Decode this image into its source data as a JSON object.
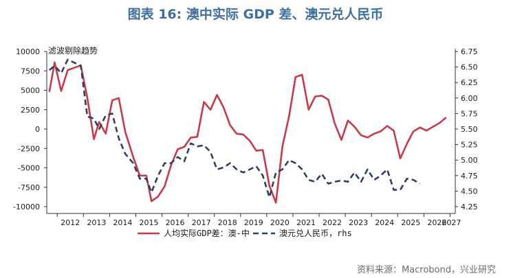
{
  "header": {
    "title": "图表 16: 澳中实际 GDP 差、澳元兑人民币"
  },
  "footer": {
    "source": "资料来源：Macrobond，兴业研究"
  },
  "colors": {
    "series1": "#c8394a",
    "series2": "#2f3f5e",
    "axis": "#333333",
    "title": "#3f6f9e"
  },
  "chart_data": {
    "type": "line",
    "annotation": "滤波剔除趋势",
    "xlabel": "",
    "ylabel": "",
    "xlim": [
      2011.6,
      2027.2
    ],
    "ylim_left": [
      -10000,
      10000
    ],
    "ylim_right": [
      4.25,
      6.75
    ],
    "left_ticks": [
      "10000",
      "7500",
      "5000",
      "2500",
      "0",
      "-2500",
      "-5000",
      "-7500",
      "-10000"
    ],
    "right_ticks": [
      "6.75",
      "6.50",
      "6.25",
      "6.00",
      "5.75",
      "5.50",
      "5.25",
      "5.00",
      "4.75",
      "4.50",
      "4.25"
    ],
    "x_ticks": [
      "2012",
      "2013",
      "2014",
      "2015",
      "2016",
      "2017",
      "2018",
      "2019",
      "2020",
      "2021",
      "2022",
      "2023",
      "2024",
      "2025",
      "2026",
      "2027"
    ],
    "series": [
      {
        "name": "人均实际GDP差：澳-中",
        "axis": "left",
        "style": "solid",
        "points": [
          [
            2011.7,
            4800
          ],
          [
            2011.9,
            8600
          ],
          [
            2012.15,
            4900
          ],
          [
            2012.4,
            7600
          ],
          [
            2012.65,
            7900
          ],
          [
            2012.9,
            8200
          ],
          [
            2013.15,
            4000
          ],
          [
            2013.4,
            -1300
          ],
          [
            2013.6,
            900
          ],
          [
            2013.85,
            -600
          ],
          [
            2014.1,
            3700
          ],
          [
            2014.35,
            4000
          ],
          [
            2014.6,
            -400
          ],
          [
            2014.9,
            -3600
          ],
          [
            2015.15,
            -6000
          ],
          [
            2015.4,
            -6000
          ],
          [
            2015.6,
            -9300
          ],
          [
            2015.85,
            -8700
          ],
          [
            2016.1,
            -7400
          ],
          [
            2016.35,
            -4600
          ],
          [
            2016.6,
            -2600
          ],
          [
            2016.85,
            -2300
          ],
          [
            2017.1,
            -1100
          ],
          [
            2017.35,
            -1000
          ],
          [
            2017.6,
            3500
          ],
          [
            2017.85,
            2500
          ],
          [
            2018.1,
            4400
          ],
          [
            2018.35,
            2800
          ],
          [
            2018.6,
            500
          ],
          [
            2018.85,
            -600
          ],
          [
            2019.1,
            -700
          ],
          [
            2019.35,
            -1500
          ],
          [
            2019.6,
            -2800
          ],
          [
            2019.85,
            -2700
          ],
          [
            2020.1,
            -7300
          ],
          [
            2020.35,
            -9500
          ],
          [
            2020.6,
            -2200
          ],
          [
            2020.85,
            1600
          ],
          [
            2021.1,
            6700
          ],
          [
            2021.35,
            7000
          ],
          [
            2021.6,
            2500
          ],
          [
            2021.85,
            4200
          ],
          [
            2022.1,
            4300
          ],
          [
            2022.35,
            3800
          ],
          [
            2022.6,
            700
          ],
          [
            2022.85,
            -1400
          ],
          [
            2023.1,
            1100
          ],
          [
            2023.35,
            300
          ],
          [
            2023.6,
            -800
          ],
          [
            2023.85,
            -1100
          ],
          [
            2024.1,
            -600
          ],
          [
            2024.35,
            -300
          ],
          [
            2024.6,
            400
          ],
          [
            2024.85,
            -200
          ],
          [
            2025.1,
            -3800
          ],
          [
            2025.35,
            -1900
          ],
          [
            2025.6,
            -300
          ],
          [
            2025.85,
            200
          ],
          [
            2026.1,
            -200
          ],
          [
            2026.35,
            300
          ],
          [
            2026.6,
            800
          ],
          [
            2026.85,
            1500
          ]
        ]
      },
      {
        "name": "澳元兑人民币，rhs",
        "axis": "right",
        "style": "dashed",
        "points": [
          [
            2011.7,
            6.45
          ],
          [
            2011.9,
            6.52
          ],
          [
            2012.15,
            6.4
          ],
          [
            2012.4,
            6.62
          ],
          [
            2012.65,
            6.57
          ],
          [
            2012.9,
            6.52
          ],
          [
            2013.15,
            5.7
          ],
          [
            2013.4,
            5.67
          ],
          [
            2013.6,
            5.5
          ],
          [
            2013.85,
            5.72
          ],
          [
            2014.1,
            5.75
          ],
          [
            2014.35,
            5.35
          ],
          [
            2014.6,
            5.1
          ],
          [
            2014.9,
            4.95
          ],
          [
            2015.15,
            4.7
          ],
          [
            2015.4,
            4.7
          ],
          [
            2015.6,
            4.48
          ],
          [
            2015.85,
            4.75
          ],
          [
            2016.1,
            4.95
          ],
          [
            2016.35,
            4.95
          ],
          [
            2016.6,
            5.05
          ],
          [
            2016.85,
            4.98
          ],
          [
            2017.1,
            5.27
          ],
          [
            2017.35,
            5.22
          ],
          [
            2017.6,
            5.24
          ],
          [
            2017.85,
            5.13
          ],
          [
            2018.1,
            4.85
          ],
          [
            2018.35,
            4.88
          ],
          [
            2018.6,
            4.95
          ],
          [
            2018.85,
            4.85
          ],
          [
            2019.1,
            4.8
          ],
          [
            2019.35,
            4.85
          ],
          [
            2019.6,
            4.9
          ],
          [
            2019.85,
            4.75
          ],
          [
            2020.1,
            4.4
          ],
          [
            2020.35,
            4.8
          ],
          [
            2020.6,
            4.85
          ],
          [
            2020.85,
            5.0
          ],
          [
            2021.1,
            4.95
          ],
          [
            2021.35,
            4.85
          ],
          [
            2021.6,
            4.68
          ],
          [
            2021.85,
            4.65
          ],
          [
            2022.1,
            4.78
          ],
          [
            2022.35,
            4.62
          ],
          [
            2022.6,
            4.65
          ],
          [
            2022.85,
            4.67
          ],
          [
            2023.1,
            4.65
          ],
          [
            2023.35,
            4.8
          ],
          [
            2023.6,
            4.65
          ],
          [
            2023.85,
            4.85
          ],
          [
            2024.1,
            4.68
          ],
          [
            2024.35,
            4.75
          ],
          [
            2024.6,
            4.85
          ],
          [
            2024.85,
            4.52
          ],
          [
            2025.1,
            4.52
          ],
          [
            2025.35,
            4.7
          ],
          [
            2025.6,
            4.68
          ],
          [
            2025.85,
            4.62
          ]
        ]
      }
    ]
  }
}
